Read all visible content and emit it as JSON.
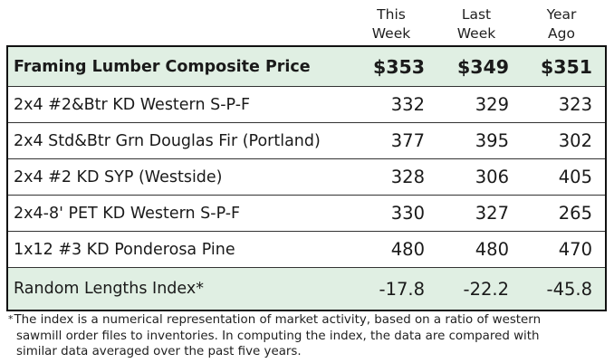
{
  "columns": [
    {
      "line1": "This",
      "line2": "Week"
    },
    {
      "line1": "Last",
      "line2": "Week"
    },
    {
      "line1": "Year",
      "line2": "Ago"
    }
  ],
  "composite": {
    "label": "Framing Lumber Composite Price",
    "values": [
      "$353",
      "$349",
      "$351"
    ]
  },
  "rows": [
    {
      "label": "2x4 #2&Btr KD Western S-P-F",
      "values": [
        "332",
        "329",
        "323"
      ]
    },
    {
      "label": "2x4 Std&Btr Grn Douglas Fir (Portland)",
      "values": [
        "377",
        "395",
        "302"
      ]
    },
    {
      "label": "2x4 #2 KD SYP (Westside)",
      "values": [
        "328",
        "306",
        "405"
      ]
    },
    {
      "label": "2x4-8' PET KD Western S-P-F",
      "values": [
        "330",
        "327",
        "265"
      ]
    },
    {
      "label": "1x12 #3 KD Ponderosa Pine",
      "values": [
        "480",
        "480",
        "470"
      ]
    }
  ],
  "index": {
    "label": "Random Lengths Index*",
    "values": [
      "-17.8",
      "-22.2",
      "-45.8"
    ]
  },
  "footnote": {
    "mark": "*",
    "line1": "The index is a numerical representation of market activity, based on a ratio of western",
    "line2": "sawmill order files to inventories. In computing the index, the data are compared with",
    "line3": "similar data averaged over the past five years."
  },
  "colors": {
    "shade": "#e0efe3",
    "border": "#111111"
  }
}
